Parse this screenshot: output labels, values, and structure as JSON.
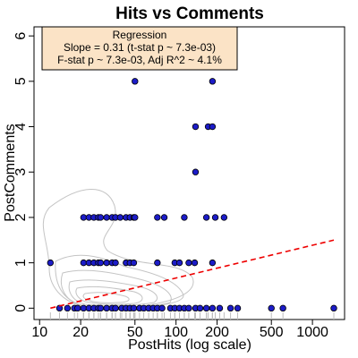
{
  "chart_data": {
    "type": "scatter",
    "title": "Hits vs Comments",
    "x_label": "PostHits (log scale)",
    "y_label": "PostComments",
    "log_x": true,
    "xlim": [
      9.1,
      1720
    ],
    "ylim": [
      -0.25,
      6.2
    ],
    "xticks": [
      10,
      20,
      50,
      100,
      200,
      500,
      1000
    ],
    "yticks": [
      0,
      1,
      2,
      3,
      4,
      5,
      6
    ],
    "points": {
      "color": "#1c1cc8",
      "x": [
        14,
        16,
        18,
        19,
        21,
        23,
        25,
        27,
        28,
        31,
        34,
        36,
        40,
        43,
        46,
        49,
        54,
        58,
        63,
        68,
        73,
        79,
        91,
        98,
        106,
        115,
        124,
        139,
        150,
        167,
        185,
        209,
        251,
        283,
        500,
        608,
        1435,
        12,
        21,
        23,
        25,
        27,
        28,
        31,
        34,
        36,
        43,
        46,
        49,
        73,
        98,
        106,
        124,
        137,
        185,
        21,
        23,
        25,
        27,
        28,
        31,
        34,
        36,
        39,
        43,
        46,
        49,
        50,
        73,
        82,
        115,
        167,
        194,
        225,
        139,
        139,
        172,
        185,
        50,
        185
      ],
      "y": [
        0,
        0,
        0,
        0,
        0,
        0,
        0,
        0,
        0,
        0,
        0,
        0,
        0,
        0,
        0,
        0,
        0,
        0,
        0,
        0,
        0,
        0,
        0,
        0,
        0,
        0,
        0,
        0,
        0,
        0,
        0,
        0,
        0,
        0,
        0,
        0,
        0,
        1,
        1,
        1,
        1,
        1,
        1,
        1,
        1,
        1,
        1,
        1,
        1,
        1,
        1,
        1,
        1,
        1,
        1,
        2,
        2,
        2,
        2,
        2,
        2,
        2,
        2,
        2,
        2,
        2,
        2,
        2,
        2,
        2,
        2,
        2,
        2,
        2,
        3,
        4,
        4,
        4,
        5,
        5
      ]
    },
    "regression": {
      "color": "#ee0000",
      "x": [
        12,
        1435
      ],
      "y": [
        0.0,
        1.5
      ]
    },
    "annotation": {
      "title": "Regression",
      "lines": [
        "Slope = 0.31 (t-stat p ~ 7.3e-03)",
        "F-stat p ~ 7.3e-03, Adj R^2 ~ 4.1%"
      ]
    }
  }
}
